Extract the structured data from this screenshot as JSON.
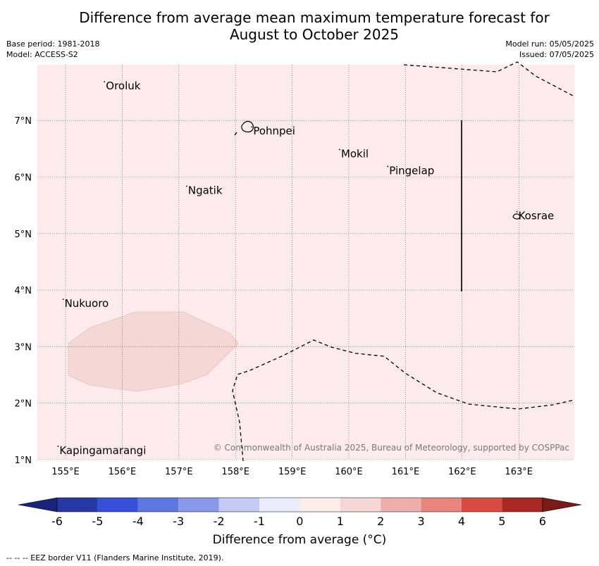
{
  "title_line1": "Difference from average mean maximum temperature forecast for",
  "title_line2": "August to October 2025",
  "base_period": "Base period: 1981-2018",
  "model": "Model: ACCESS-S2",
  "model_run": "Model run: 05/05/2025",
  "issued": "Issued: 07/05/2025",
  "lon_labels": [
    "155°E",
    "156°E",
    "157°E",
    "158°E",
    "159°E",
    "160°E",
    "161°E",
    "162°E",
    "163°E"
  ],
  "lat_labels": [
    "7°N",
    "6°N",
    "5°N",
    "4°N",
    "3°N",
    "2°N",
    "1°N"
  ],
  "islands": [
    {
      "name": "Oroluk",
      "lon": 155.7,
      "lat": 7.65
    },
    {
      "name": "Pohnpei",
      "lon": 158.3,
      "lat": 6.85
    },
    {
      "name": "Mokil",
      "lon": 159.85,
      "lat": 6.45
    },
    {
      "name": "Pingelap",
      "lon": 160.7,
      "lat": 6.15
    },
    {
      "name": "Ngatik",
      "lon": 157.15,
      "lat": 5.8
    },
    {
      "name": "Kosrae",
      "lon": 162.98,
      "lat": 5.35
    },
    {
      "name": "Nukuoro",
      "lon": 154.97,
      "lat": 3.8
    },
    {
      "name": "Kapingamarangi",
      "lon": 154.88,
      "lat": 1.2
    }
  ],
  "colors": {
    "background_anomaly": "#fcebea",
    "warm_patch": "#f5d8d5",
    "ocean_grid": "#555555"
  },
  "copyright": "© Commonwealth of Australia 2025, Bureau of Meteorology, supported by COSPPac",
  "colorbar": {
    "ticks": [
      "-6",
      "-5",
      "-4",
      "-3",
      "-2",
      "-1",
      "0",
      "1",
      "2",
      "3",
      "4",
      "5",
      "6"
    ],
    "colors": [
      "#2638a5",
      "#344fd8",
      "#5c78e0",
      "#8799e8",
      "#c4caf3",
      "#ebecfb",
      "#fdeeec",
      "#f5d8d5",
      "#eeaeaa",
      "#e7857e",
      "#d94b40",
      "#a92824"
    ],
    "under_color": "#1a237a",
    "over_color": "#7a1a17",
    "label": "Difference from average (°C)"
  },
  "footnote": "--  --  -- EEZ border V11 (Flanders Marine Institute, 2019)."
}
